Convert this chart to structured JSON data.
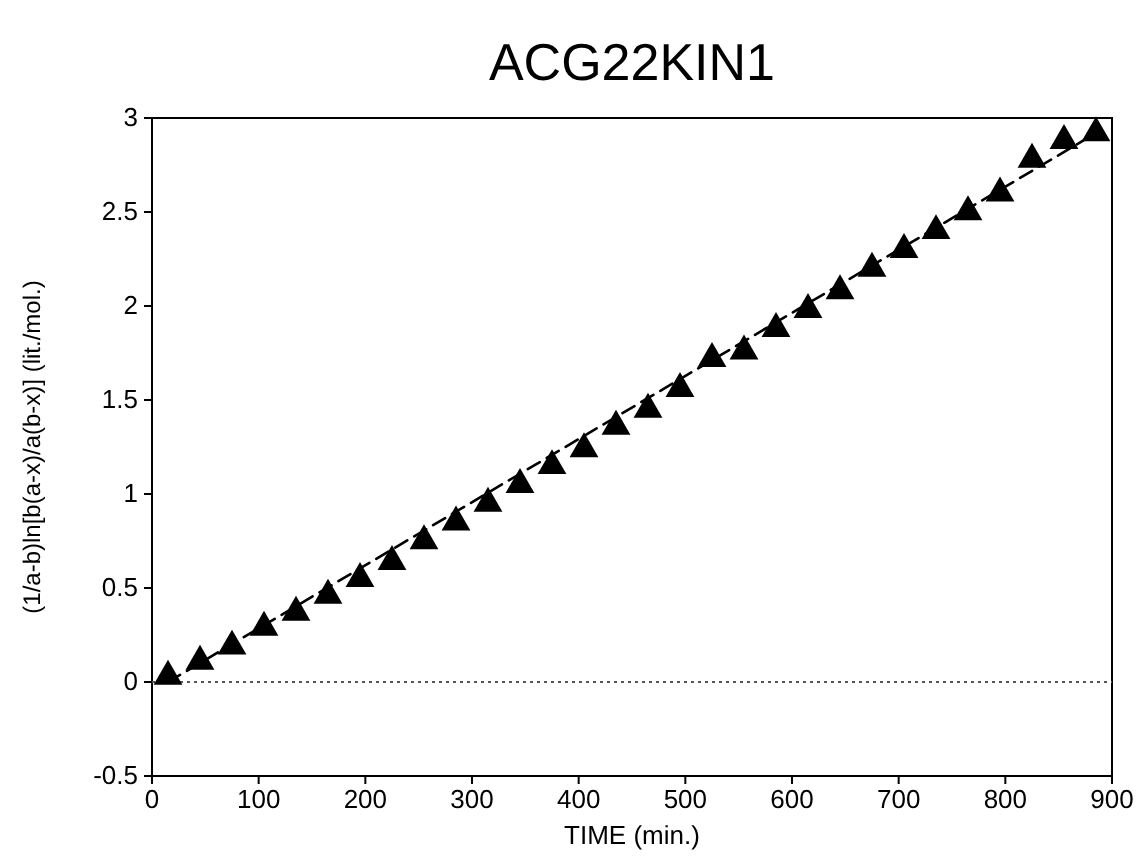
{
  "chart_data": {
    "type": "scatter",
    "title": "ACG22KIN1",
    "xlabel": "TIME (min.)",
    "ylabel": "(1/a-b)ln[b(a-x)/a(b-x)] (lit./mol.)",
    "xlim": [
      0,
      900
    ],
    "xticks": [
      0,
      100,
      200,
      300,
      400,
      500,
      600,
      700,
      800,
      900
    ],
    "ylim": [
      -0.5,
      3
    ],
    "yticks": [
      -0.5,
      0,
      0.5,
      1,
      1.5,
      2,
      2.5,
      3
    ],
    "grid": false,
    "marker": "triangle",
    "ref_lines": [
      {
        "axis": "y",
        "value": 0,
        "line_style": "dotted",
        "color": "#555555"
      }
    ],
    "series": [
      {
        "color": "#000000",
        "x": [
          15,
          45,
          75,
          105,
          135,
          165,
          195,
          225,
          255,
          285,
          315,
          345,
          375,
          405,
          435,
          465,
          495,
          525,
          555,
          585,
          615,
          645,
          675,
          705,
          735,
          765,
          795,
          825,
          855,
          885
        ],
        "values": [
          0.03,
          0.11,
          0.19,
          0.29,
          0.37,
          0.46,
          0.55,
          0.64,
          0.75,
          0.85,
          0.95,
          1.05,
          1.15,
          1.24,
          1.36,
          1.45,
          1.56,
          1.72,
          1.76,
          1.88,
          1.98,
          2.08,
          2.2,
          2.3,
          2.4,
          2.5,
          2.6,
          2.78,
          2.88,
          2.92
        ]
      },
      {
        "type": "line",
        "color": "#000000",
        "line_style": "dashed",
        "marker": "none",
        "x": [
          15,
          885
        ],
        "values": [
          0,
          2.92
        ]
      }
    ]
  }
}
